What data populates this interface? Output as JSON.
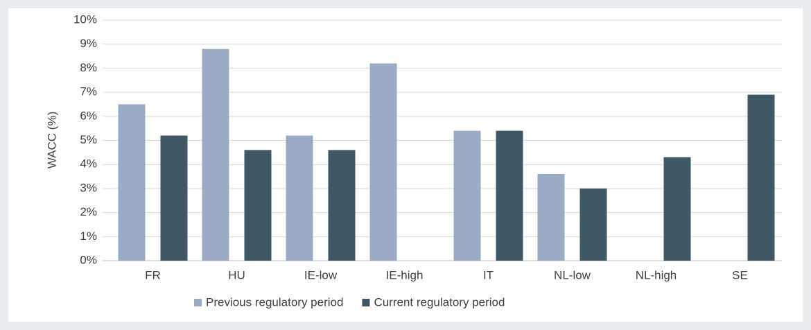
{
  "chart_data": {
    "type": "bar",
    "y_label": "WACC (%)",
    "categories": [
      "FR",
      "HU",
      "IE-low",
      "IE-high",
      "IT",
      "NL-low",
      "NL-high",
      "SE"
    ],
    "series": [
      {
        "name": "Previous regulatory period",
        "color": "#9aabc3",
        "values": [
          6.5,
          8.8,
          5.2,
          8.2,
          5.4,
          3.6,
          null,
          null
        ]
      },
      {
        "name": "Current regulatory period",
        "color": "#3f5866",
        "values": [
          5.2,
          4.6,
          4.6,
          null,
          5.4,
          3.0,
          4.3,
          6.9
        ]
      }
    ],
    "ylim": [
      0,
      10
    ],
    "yticks": [
      {
        "value": 0,
        "label": "0%"
      },
      {
        "value": 1,
        "label": "1%"
      },
      {
        "value": 2,
        "label": "2%"
      },
      {
        "value": 3,
        "label": "3%"
      },
      {
        "value": 4,
        "label": "4%"
      },
      {
        "value": 5,
        "label": "5%"
      },
      {
        "value": 6,
        "label": "6%"
      },
      {
        "value": 7,
        "label": "7%"
      },
      {
        "value": 8,
        "label": "8%"
      },
      {
        "value": 9,
        "label": "9%"
      },
      {
        "value": 10,
        "label": "10%"
      }
    ],
    "grid": true,
    "legend": "bottom"
  }
}
